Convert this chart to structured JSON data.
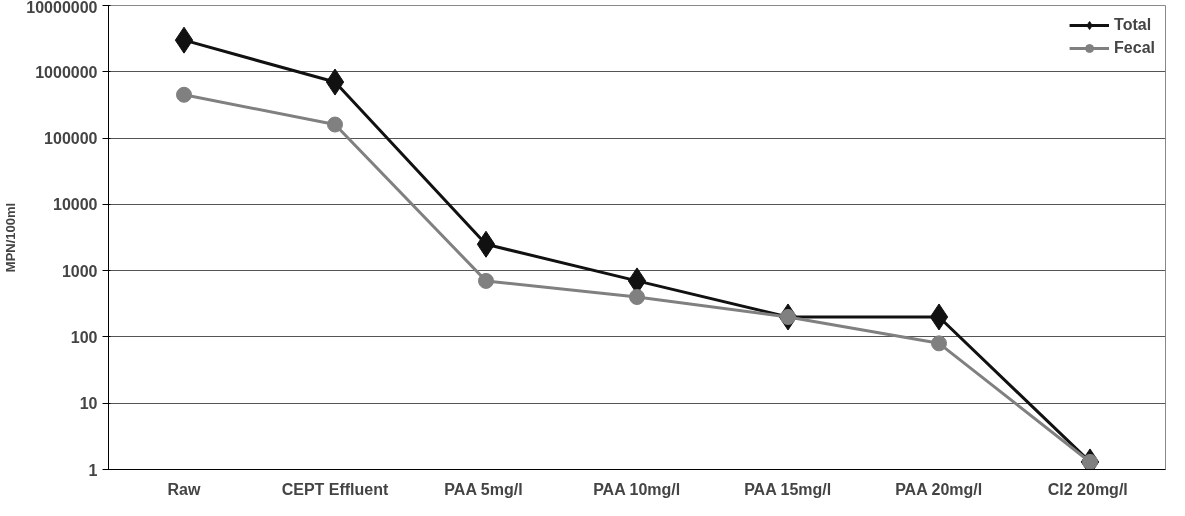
{
  "chart_data": {
    "type": "line",
    "ylabel": "MPN/100ml",
    "categories": [
      "Raw",
      "CEPT Effluent",
      "PAA  5mg/l",
      "PAA 10mg/l",
      "PAA 15mg/l",
      "PAA 20mg/l",
      "Cl2  20mg/l"
    ],
    "series": [
      {
        "name": "Total",
        "color": "#111111",
        "marker": "diamond",
        "values": [
          3000000,
          700000,
          2500,
          700,
          200,
          200,
          1.3
        ]
      },
      {
        "name": "Fecal",
        "color": "#808080",
        "marker": "circle",
        "values": [
          450000,
          160000,
          700,
          400,
          200,
          80,
          1.3
        ]
      }
    ],
    "log": true,
    "ylim": [
      1,
      10000000
    ],
    "yticks": [
      1,
      10,
      100,
      1000,
      10000,
      100000,
      1000000,
      10000000
    ],
    "grid": "y",
    "legend": "top right"
  }
}
